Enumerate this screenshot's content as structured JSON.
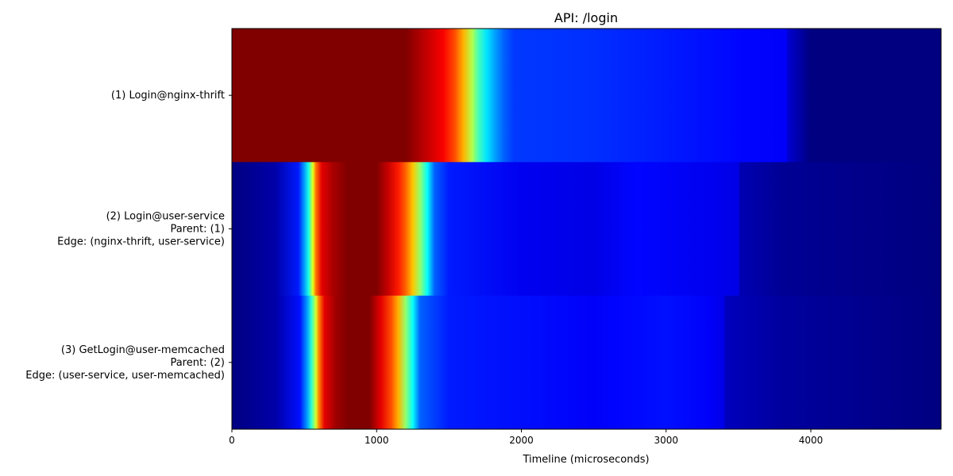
{
  "chart_data": {
    "type": "heatmap",
    "title": "API: /login",
    "xlabel": "Timeline (microseconds)",
    "ylabel": "",
    "xlim": [
      0,
      4900
    ],
    "xticks": [
      0,
      1000,
      2000,
      3000,
      4000
    ],
    "xtick_labels": [
      "0",
      "1000",
      "2000",
      "3000",
      "4000"
    ],
    "colormap": "jet",
    "rows": [
      {
        "label_lines": [
          "(1) Login@nginx-thrift"
        ],
        "intensity": [
          [
            0,
            1.0
          ],
          [
            1200,
            1.0
          ],
          [
            1330,
            0.94
          ],
          [
            1460,
            0.88
          ],
          [
            1540,
            0.8
          ],
          [
            1600,
            0.7
          ],
          [
            1660,
            0.55
          ],
          [
            1700,
            0.45
          ],
          [
            1760,
            0.35
          ],
          [
            1820,
            0.28
          ],
          [
            1880,
            0.22
          ],
          [
            1950,
            0.18
          ],
          [
            2500,
            0.17
          ],
          [
            3000,
            0.15
          ],
          [
            3500,
            0.13
          ],
          [
            3830,
            0.12
          ],
          [
            3840,
            0.08
          ],
          [
            4000,
            0.0
          ],
          [
            4900,
            0.0
          ]
        ]
      },
      {
        "label_lines": [
          "(2) Login@user-service",
          "Parent: (1)",
          "Edge: (nginx-thrift, user-service)"
        ],
        "intensity": [
          [
            0,
            0.0
          ],
          [
            300,
            0.04
          ],
          [
            460,
            0.15
          ],
          [
            500,
            0.28
          ],
          [
            530,
            0.4
          ],
          [
            560,
            0.6
          ],
          [
            580,
            0.76
          ],
          [
            620,
            0.9
          ],
          [
            700,
            0.96
          ],
          [
            800,
            1.0
          ],
          [
            1000,
            1.0
          ],
          [
            1080,
            0.93
          ],
          [
            1150,
            0.85
          ],
          [
            1200,
            0.78
          ],
          [
            1250,
            0.68
          ],
          [
            1300,
            0.52
          ],
          [
            1350,
            0.38
          ],
          [
            1400,
            0.22
          ],
          [
            1500,
            0.15
          ],
          [
            2000,
            0.11
          ],
          [
            2500,
            0.1
          ],
          [
            2800,
            0.13
          ],
          [
            3300,
            0.11
          ],
          [
            3500,
            0.1
          ],
          [
            3510,
            0.05
          ],
          [
            3800,
            0.02
          ],
          [
            4900,
            0.0
          ]
        ]
      },
      {
        "label_lines": [
          "(3) GetLogin@user-memcached",
          "Parent: (2)",
          "Edge: (user-service, user-memcached)"
        ],
        "intensity": [
          [
            0,
            0.0
          ],
          [
            300,
            0.04
          ],
          [
            470,
            0.14
          ],
          [
            520,
            0.28
          ],
          [
            550,
            0.42
          ],
          [
            580,
            0.58
          ],
          [
            600,
            0.74
          ],
          [
            640,
            0.9
          ],
          [
            720,
            0.97
          ],
          [
            800,
            1.0
          ],
          [
            950,
            1.0
          ],
          [
            1030,
            0.9
          ],
          [
            1100,
            0.8
          ],
          [
            1150,
            0.7
          ],
          [
            1200,
            0.52
          ],
          [
            1250,
            0.38
          ],
          [
            1300,
            0.22
          ],
          [
            1500,
            0.15
          ],
          [
            2500,
            0.12
          ],
          [
            2700,
            0.13
          ],
          [
            3000,
            0.14
          ],
          [
            3300,
            0.12
          ],
          [
            3400,
            0.1
          ],
          [
            3410,
            0.06
          ],
          [
            3800,
            0.03
          ],
          [
            4900,
            0.0
          ]
        ]
      }
    ]
  }
}
